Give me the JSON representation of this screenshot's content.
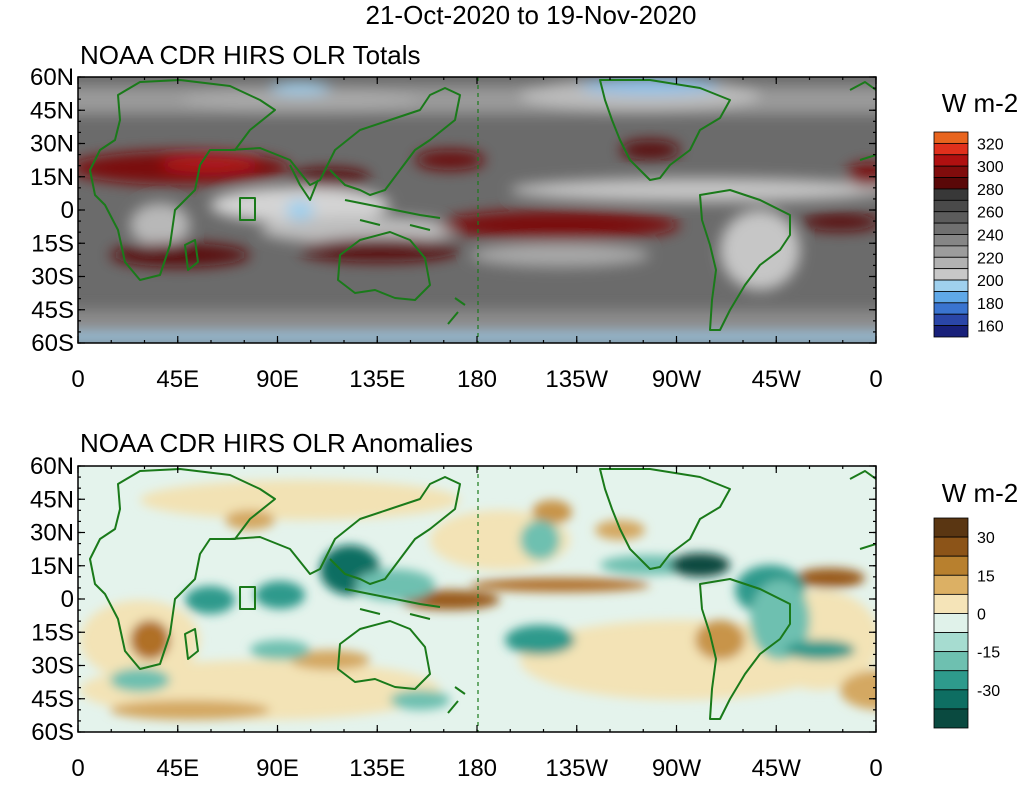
{
  "header": {
    "date_range": "21-Oct-2020 to 19-Nov-2020"
  },
  "axes": {
    "lat_ticks": [
      "60N",
      "45N",
      "30N",
      "15N",
      "0",
      "15S",
      "30S",
      "45S",
      "60S"
    ],
    "lon_ticks": [
      "0",
      "45E",
      "90E",
      "135E",
      "180",
      "135W",
      "90W",
      "45W",
      "0"
    ]
  },
  "panels": [
    {
      "title": "NOAA CDR HIRS OLR Totals",
      "colorbar": {
        "unit": "W m-2",
        "labels": [
          "320",
          "300",
          "280",
          "260",
          "240",
          "220",
          "200",
          "180",
          "160"
        ],
        "colors": [
          "#e8641e",
          "#e0301c",
          "#b01010",
          "#800c0c",
          "#5a0808",
          "#383838",
          "#4a4a4a",
          "#5c5c5c",
          "#707070",
          "#868686",
          "#9c9c9c",
          "#b2b2b2",
          "#c8c8c8",
          "#9fd0ee",
          "#5fa8e8",
          "#3a74d0",
          "#2a46a8",
          "#18207a"
        ]
      }
    },
    {
      "title": "NOAA CDR HIRS OLR Anomalies",
      "colorbar": {
        "unit": "W m-2",
        "labels": [
          "30",
          "15",
          "0",
          "-15",
          "-30"
        ],
        "colors": [
          "#5a3612",
          "#8c5418",
          "#b8802e",
          "#dcb064",
          "#f5e4b8",
          "#e0f2ea",
          "#a6dcd0",
          "#6ec0b0",
          "#2e9a8c",
          "#0e6e62",
          "#0a4a40"
        ]
      }
    }
  ],
  "map_colors": {
    "coast": "#1a7a1a",
    "totals_base": "#6b6b6b",
    "totals_hot": "#7a0c0c",
    "totals_cold": "#cfcfcf",
    "anom_positive": "#c8944a",
    "anom_negative": "#3a9e90",
    "anom_neutral": "#f3e3b6"
  }
}
